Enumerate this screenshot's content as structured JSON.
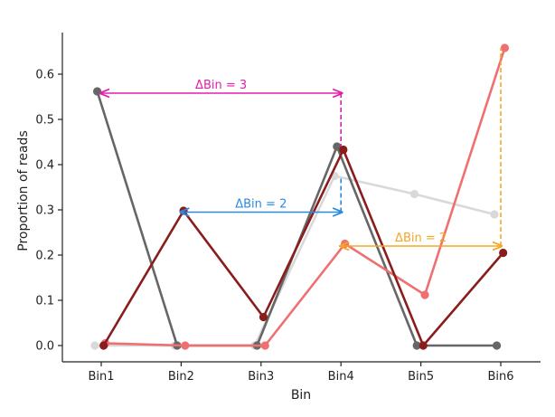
{
  "chart_data": {
    "type": "line",
    "title": "",
    "xlabel": "Bin",
    "ylabel": "Proportion of reads",
    "categories": [
      "Bin1",
      "Bin2",
      "Bin3",
      "Bin4",
      "Bin5",
      "Bin6"
    ],
    "ylim": [
      -0.02,
      0.69
    ],
    "yticks": [
      0.0,
      0.1,
      0.2,
      0.3,
      0.4,
      0.5,
      0.6
    ],
    "ytick_labels": [
      "0.0",
      "0.1",
      "0.2",
      "0.3",
      "0.4",
      "0.5",
      "0.6"
    ],
    "grid": false,
    "legend": "none",
    "series": [
      {
        "color": "#d9d9d9",
        "x_offset": -0.08,
        "values": [
          0.0,
          0.0,
          0.0,
          0.375,
          0.335,
          0.29
        ]
      },
      {
        "color": "#666666",
        "x_offset": -0.05,
        "values": [
          0.562,
          0.0,
          0.0,
          0.44,
          0.0,
          0.0
        ]
      },
      {
        "color": "#ee7070",
        "x_offset": 0.05,
        "values": [
          0.005,
          0.0,
          0.0,
          0.225,
          0.112,
          0.658
        ]
      },
      {
        "color": "#8b1c1c",
        "x_offset": 0.03,
        "values": [
          0.0,
          0.298,
          0.063,
          0.433,
          0.0,
          0.205
        ]
      }
    ],
    "annotations": [
      {
        "label": "ΔBin = 3",
        "color": "#e020a8",
        "from_bin": 0,
        "to_bin": 3,
        "y": 0.558,
        "drop_to": 0.44
      },
      {
        "label": "ΔBin = 2",
        "color": "#2b8ae0",
        "from_bin": 1,
        "to_bin": 3,
        "y": 0.295,
        "drop_to": 0.375
      },
      {
        "label": "ΔBin = 2",
        "color": "#f5a623",
        "from_bin": 3,
        "to_bin": 5,
        "y": 0.22,
        "drop_to": 0.658
      }
    ]
  }
}
